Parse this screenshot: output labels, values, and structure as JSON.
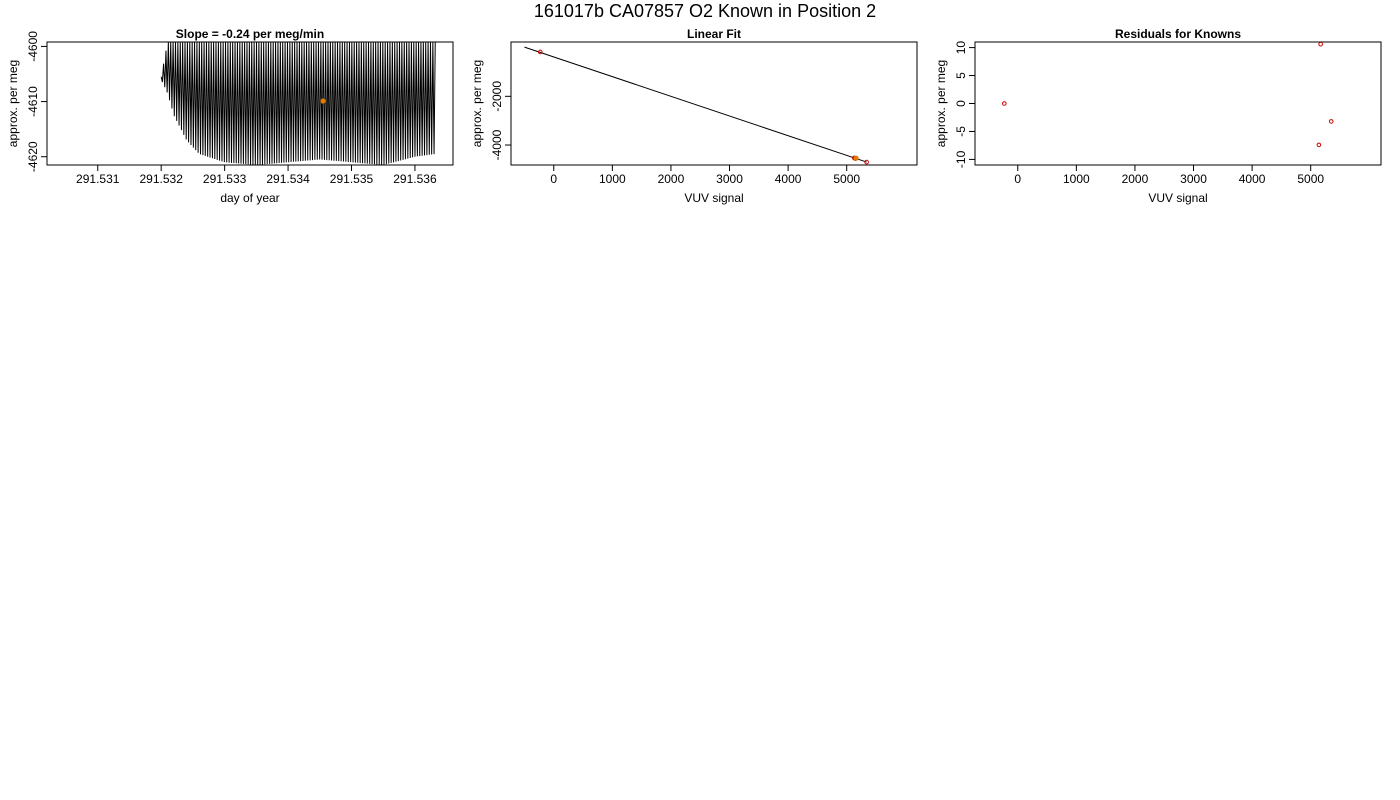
{
  "figure": {
    "title": "161017b     CA07857   O2 Known in Position  2"
  },
  "chart_data": [
    {
      "type": "line",
      "title": "Slope =  -0.24  per meg/min",
      "xlabel": "day of year",
      "ylabel": "approx. per meg",
      "xlim": [
        291.5302,
        291.5366
      ],
      "ylim": [
        -4621.5,
        -4599.2
      ],
      "x_ticks": [
        "291.531",
        "291.532",
        "291.533",
        "291.534",
        "291.535",
        "291.536"
      ],
      "x_tick_values": [
        291.531,
        291.532,
        291.533,
        291.534,
        291.535,
        291.536
      ],
      "y_ticks": [
        "-4600",
        "-4610",
        "-4620"
      ],
      "y_tick_values": [
        -4600,
        -4610,
        -4620
      ],
      "series": [
        {
          "color": "#000000",
          "x_start": 291.532,
          "x_end": 291.53632,
          "n_cycles": 115,
          "upper_envelope": [
            {
              "x": 291.532,
              "y": -4605.5
            },
            {
              "x": 291.5321,
              "y": -4599.2
            },
            {
              "x": 291.5365,
              "y": -4599.2
            }
          ],
          "lower_envelope": [
            {
              "x": 291.532,
              "y": -4606
            },
            {
              "x": 291.5321,
              "y": -4608.5
            },
            {
              "x": 291.5322,
              "y": -4612.5
            },
            {
              "x": 291.5324,
              "y": -4617
            },
            {
              "x": 291.5326,
              "y": -4619.5
            },
            {
              "x": 291.533,
              "y": -4621
            },
            {
              "x": 291.5335,
              "y": -4621.5
            },
            {
              "x": 291.534,
              "y": -4621
            },
            {
              "x": 291.5345,
              "y": -4620.5
            },
            {
              "x": 291.535,
              "y": -4621
            },
            {
              "x": 291.5355,
              "y": -4621.5
            },
            {
              "x": 291.536,
              "y": -4620
            },
            {
              "x": 291.53632,
              "y": -4619.5
            }
          ]
        }
      ],
      "highlight_point": {
        "x": 291.53455,
        "y": -4609.9,
        "color": "#e07b00"
      }
    },
    {
      "type": "scatter",
      "title": "Linear Fit",
      "xlabel": "VUV signal",
      "ylabel": "approx. per meg",
      "xlim": [
        -730,
        6200
      ],
      "ylim": [
        -4820,
        230
      ],
      "x_ticks": [
        "0",
        "1000",
        "2000",
        "3000",
        "4000",
        "5000"
      ],
      "x_tick_values": [
        0,
        1000,
        2000,
        3000,
        4000,
        5000
      ],
      "y_ticks": [
        "-2000",
        "-4000"
      ],
      "y_tick_values": [
        -2000,
        -4000
      ],
      "points": [
        {
          "x": -230,
          "y": -180
        },
        {
          "x": 5130,
          "y": -4530
        },
        {
          "x": 5150,
          "y": -4560
        },
        {
          "x": 5340,
          "y": -4700
        }
      ],
      "point_color": "#cc0000",
      "fit_line": {
        "x": [
          -500,
          5340
        ],
        "y": [
          20,
          -4700
        ],
        "color": "#000000"
      },
      "highlight_point": {
        "x": 5160,
        "y": -4540,
        "color": "#e07b00"
      }
    },
    {
      "type": "scatter",
      "title": "Residuals for Knowns",
      "xlabel": "VUV signal",
      "ylabel": "approx. per meg",
      "xlim": [
        -730,
        6200
      ],
      "ylim": [
        -11,
        11
      ],
      "x_ticks": [
        "0",
        "1000",
        "2000",
        "3000",
        "4000",
        "5000"
      ],
      "x_tick_values": [
        0,
        1000,
        2000,
        3000,
        4000,
        5000
      ],
      "y_ticks": [
        "10",
        "5",
        "0",
        "-5",
        "-10"
      ],
      "y_tick_values": [
        10,
        5,
        0,
        -5,
        -10
      ],
      "points": [
        {
          "x": -230,
          "y": 0
        },
        {
          "x": 5170,
          "y": 10.6
        },
        {
          "x": 5140,
          "y": -7.4
        },
        {
          "x": 5350,
          "y": -3.2
        }
      ],
      "point_color": "#cc0000"
    }
  ]
}
